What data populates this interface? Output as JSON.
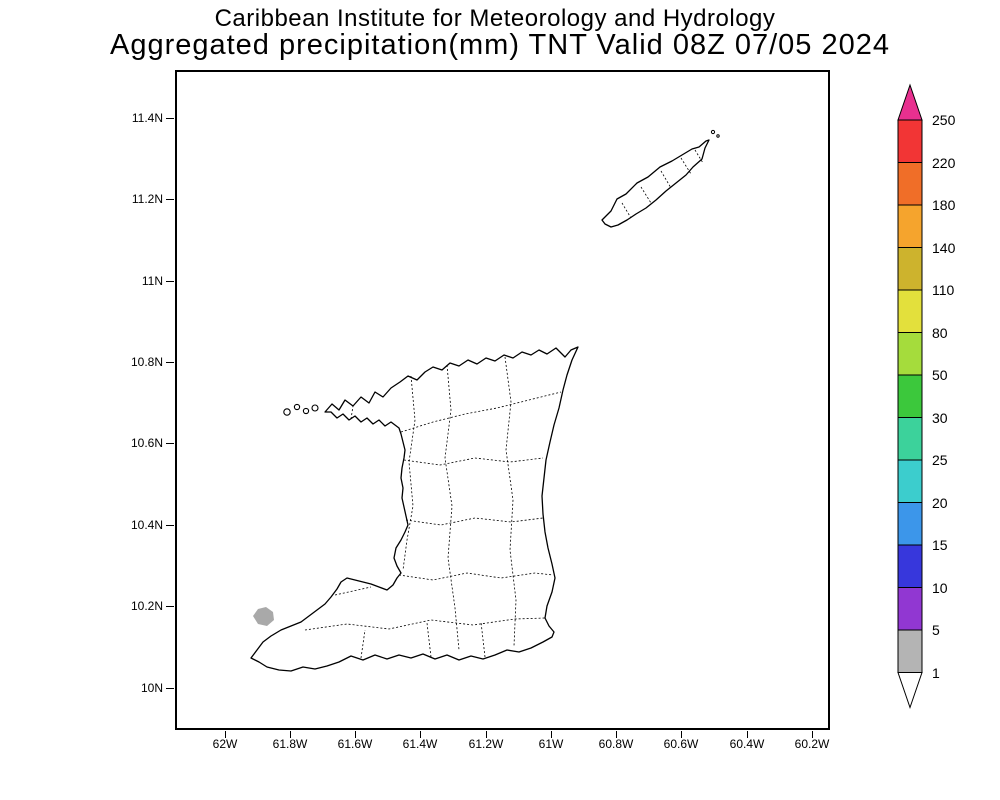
{
  "header": {
    "title_line1": "Caribbean Institute for Meteorology and Hydrology",
    "title_line2": "Aggregated precipitation(mm) TNT Valid 08Z 07/05 2024"
  },
  "chart_data": {
    "type": "map",
    "subtype": "filled-contour precipitation map over coastline/administrative boundaries",
    "source": "Caribbean Institute for Meteorology and Hydrology",
    "title": "Aggregated precipitation(mm) TNT Valid 08Z 07/05 2024",
    "region": "Trinidad and Tobago (TNT)",
    "variable": "Aggregated precipitation",
    "units": "mm",
    "valid_time": "08Z 07/05 2024",
    "x_axis": {
      "labels": [
        "62W",
        "61.8W",
        "61.6W",
        "61.4W",
        "61.2W",
        "61W",
        "60.8W",
        "60.6W",
        "60.4W",
        "60.2W"
      ]
    },
    "y_axis": {
      "labels": [
        "11.4N",
        "11.2N",
        "11N",
        "10.8N",
        "10.6N",
        "10.4N",
        "10.2N",
        "10N"
      ]
    },
    "colorbar": {
      "levels": [
        "250",
        "220",
        "180",
        "140",
        "110",
        "80",
        "50",
        "30",
        "25",
        "20",
        "15",
        "10",
        "5",
        "1"
      ],
      "band_colors": [
        "#f23535",
        "#f06e28",
        "#f5a42d",
        "#cdb32d",
        "#e3e03c",
        "#a5dc3c",
        "#3cc83c",
        "#3cd29b",
        "#3ccdcd",
        "#3c96ea",
        "#3737dc",
        "#9137d2",
        "#b4b4b4"
      ],
      "above_color": "#e8308f",
      "below_color": "#ffffff",
      "legend_position": "right"
    },
    "features": [
      {
        "name": "precipitation-patch",
        "description": "small gray shaded precipitation area in southwest Trinidad near 10.18N 61.89W",
        "value_range": "1-5 mm",
        "color": "#a9a9a9"
      }
    ],
    "map_fill": "#ffffff",
    "coastline_color": "#000000",
    "grid": "off"
  }
}
